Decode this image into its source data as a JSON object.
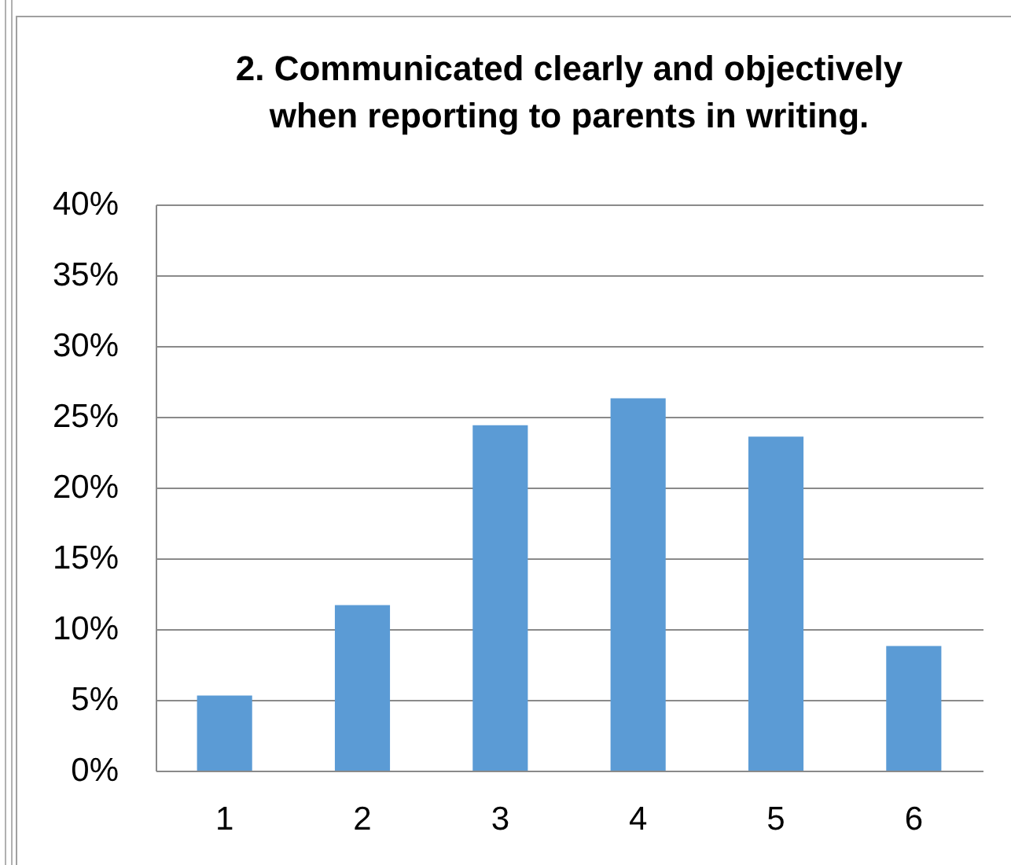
{
  "chart_data": {
    "type": "bar",
    "title": "2. Communicated clearly and objectively\nwhen reporting to parents in writing.",
    "categories": [
      "1",
      "2",
      "3",
      "4",
      "5",
      "6"
    ],
    "values": [
      5.3,
      11.7,
      24.4,
      26.3,
      23.6,
      8.8
    ],
    "color": "#5b9bd5",
    "ylim": [
      0,
      40
    ],
    "yticks": [
      {
        "value": 0,
        "label": "0%"
      },
      {
        "value": 5,
        "label": "5%"
      },
      {
        "value": 10,
        "label": "10%"
      },
      {
        "value": 15,
        "label": "15%"
      },
      {
        "value": 20,
        "label": "20%"
      },
      {
        "value": 25,
        "label": "25%"
      },
      {
        "value": 30,
        "label": "30%"
      },
      {
        "value": 35,
        "label": "35%"
      },
      {
        "value": 40,
        "label": "40%"
      }
    ],
    "grid": "y"
  }
}
